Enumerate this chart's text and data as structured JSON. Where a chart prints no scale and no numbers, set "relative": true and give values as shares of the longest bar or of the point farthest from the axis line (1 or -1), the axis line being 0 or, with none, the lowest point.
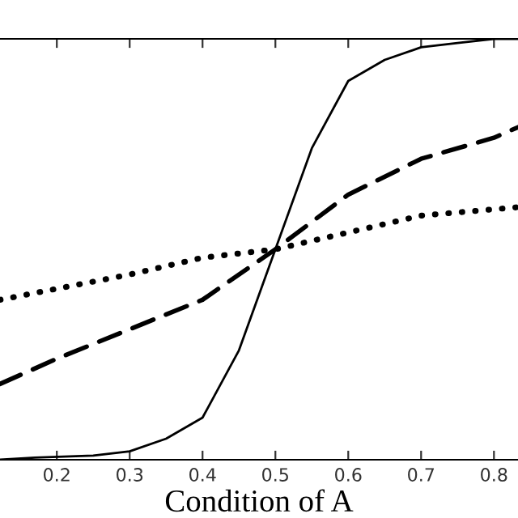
{
  "chart_data": {
    "type": "line",
    "xlabel": "Condition of A",
    "relative": true,
    "tick_labels": "x",
    "grid": false,
    "legend": false,
    "marker": "none",
    "xlim": [
      0.122,
      0.833
    ],
    "xticks": [
      0.2,
      0.3,
      0.4,
      0.5,
      0.6,
      0.7,
      0.8
    ],
    "series": [
      {
        "color": "#000000",
        "line_style": "solid",
        "x": [
          0.122,
          0.17,
          0.25,
          0.3,
          0.35,
          0.4,
          0.45,
          0.5,
          0.55,
          0.6,
          0.65,
          0.7,
          0.75,
          0.8,
          0.833
        ],
        "values": [
          0,
          0.005,
          0.01,
          0.02,
          0.05,
          0.1,
          0.26,
          0.5,
          0.74,
          0.9,
          0.95,
          0.98,
          0.99,
          1.0,
          1.0
        ]
      },
      {
        "color": "#000000",
        "line_style": "dashed",
        "x": [
          0.122,
          0.2,
          0.3,
          0.4,
          0.5,
          0.6,
          0.7,
          0.8,
          0.833
        ],
        "values": [
          0.18,
          0.24,
          0.31,
          0.38,
          0.5,
          0.63,
          0.715,
          0.765,
          0.79
        ]
      },
      {
        "color": "#000000",
        "line_style": "dotted",
        "x": [
          0.122,
          0.3,
          0.4,
          0.5,
          0.6,
          0.7,
          0.833
        ],
        "values": [
          0.38,
          0.44,
          0.48,
          0.5,
          0.54,
          0.58,
          0.6
        ]
      }
    ]
  }
}
